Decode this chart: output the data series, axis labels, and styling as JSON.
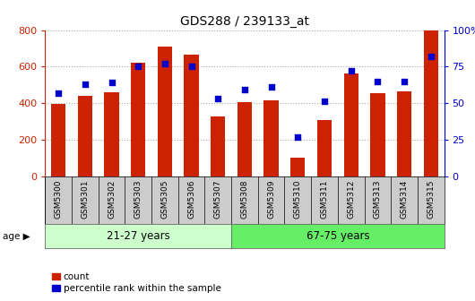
{
  "title": "GDS288 / 239133_at",
  "categories": [
    "GSM5300",
    "GSM5301",
    "GSM5302",
    "GSM5303",
    "GSM5305",
    "GSM5306",
    "GSM5307",
    "GSM5308",
    "GSM5309",
    "GSM5310",
    "GSM5311",
    "GSM5312",
    "GSM5313",
    "GSM5314",
    "GSM5315"
  ],
  "bar_values": [
    395,
    440,
    460,
    620,
    710,
    665,
    325,
    405,
    415,
    100,
    305,
    560,
    455,
    465,
    800
  ],
  "dot_values": [
    57,
    63,
    64,
    75,
    77,
    75,
    53,
    59,
    61,
    27,
    51,
    72,
    65,
    65,
    82
  ],
  "bar_color": "#cc2200",
  "dot_color": "#0000cc",
  "ylim_left": [
    0,
    800
  ],
  "ylim_right": [
    0,
    100
  ],
  "yticks_left": [
    0,
    200,
    400,
    600,
    800
  ],
  "yticks_right": [
    0,
    25,
    50,
    75,
    100
  ],
  "yticklabels_right": [
    "0",
    "25",
    "50",
    "75",
    "100%"
  ],
  "group1_label": "21-27 years",
  "group2_label": "67-75 years",
  "n_group1": 7,
  "n_group2": 8,
  "group1_color": "#ccffcc",
  "group2_color": "#66ee66",
  "age_label": "age",
  "legend_count": "count",
  "legend_percentile": "percentile rank within the sample",
  "bg_color": "#ffffff",
  "grid_color": "#aaaaaa",
  "left_tick_color": "#cc2200",
  "right_tick_color": "#0000cc",
  "xtick_bg_color": "#cccccc"
}
